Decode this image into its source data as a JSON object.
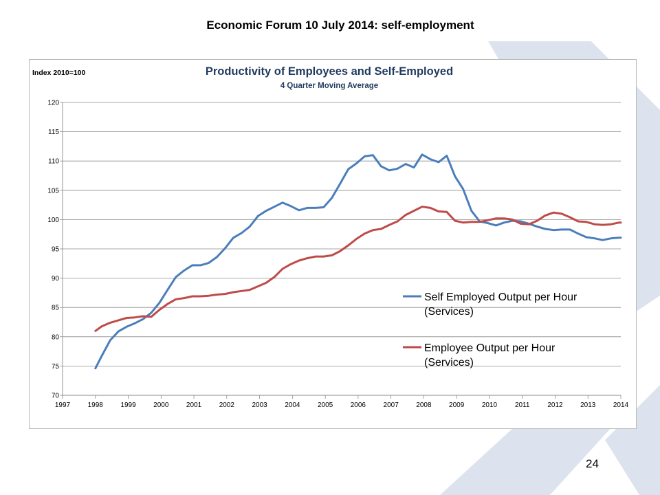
{
  "slide": {
    "title": "Economic Forum 10 July 2014: self-employment",
    "page_number": "24",
    "accent_color": "#dde3ee"
  },
  "chart_data": {
    "type": "line",
    "title": "Productivity of Employees and Self-Employed",
    "subtitle": "4 Quarter Moving Average",
    "ylabel": "Index 2010=100",
    "xlabel": "",
    "xlim": [
      1997,
      2014
    ],
    "ylim": [
      70,
      120
    ],
    "x_ticks": [
      "1997",
      "1998",
      "1999",
      "2000",
      "2001",
      "2002",
      "2003",
      "2004",
      "2005",
      "2006",
      "2007",
      "2008",
      "2009",
      "2010",
      "2011",
      "2012",
      "2013",
      "2014"
    ],
    "y_ticks": [
      "70",
      "75",
      "80",
      "85",
      "90",
      "95",
      "100",
      "105",
      "110",
      "115",
      "120"
    ],
    "grid": "horizontal",
    "legend_position": "right-center",
    "series": [
      {
        "name": "Self Employed Output per Hour (Services)",
        "color": "#4a7ebb",
        "points": [
          [
            1998.0,
            74.6
          ],
          [
            1998.2,
            76.8
          ],
          [
            1998.45,
            79.4
          ],
          [
            1998.7,
            80.9
          ],
          [
            1998.95,
            81.7
          ],
          [
            1999.2,
            82.3
          ],
          [
            1999.45,
            83.0
          ],
          [
            1999.7,
            84.1
          ],
          [
            1999.95,
            85.8
          ],
          [
            2000.2,
            88.0
          ],
          [
            2000.45,
            90.2
          ],
          [
            2000.7,
            91.3
          ],
          [
            2000.95,
            92.2
          ],
          [
            2001.2,
            92.2
          ],
          [
            2001.45,
            92.6
          ],
          [
            2001.7,
            93.6
          ],
          [
            2001.95,
            95.1
          ],
          [
            2002.2,
            96.9
          ],
          [
            2002.45,
            97.7
          ],
          [
            2002.7,
            98.8
          ],
          [
            2002.95,
            100.6
          ],
          [
            2003.2,
            101.5
          ],
          [
            2003.45,
            102.2
          ],
          [
            2003.7,
            102.9
          ],
          [
            2003.95,
            102.3
          ],
          [
            2004.2,
            101.6
          ],
          [
            2004.45,
            102.0
          ],
          [
            2004.7,
            102.0
          ],
          [
            2004.95,
            102.1
          ],
          [
            2005.2,
            103.7
          ],
          [
            2005.45,
            106.1
          ],
          [
            2005.7,
            108.6
          ],
          [
            2005.95,
            109.6
          ],
          [
            2006.2,
            110.8
          ],
          [
            2006.45,
            111.0
          ],
          [
            2006.7,
            109.1
          ],
          [
            2006.95,
            108.4
          ],
          [
            2007.2,
            108.7
          ],
          [
            2007.45,
            109.5
          ],
          [
            2007.7,
            108.9
          ],
          [
            2007.95,
            111.1
          ],
          [
            2008.2,
            110.3
          ],
          [
            2008.45,
            109.8
          ],
          [
            2008.7,
            110.9
          ],
          [
            2008.95,
            107.4
          ],
          [
            2009.2,
            105.2
          ],
          [
            2009.45,
            101.5
          ],
          [
            2009.7,
            99.7
          ],
          [
            2009.95,
            99.4
          ],
          [
            2010.2,
            99.0
          ],
          [
            2010.45,
            99.5
          ],
          [
            2010.7,
            99.8
          ],
          [
            2010.95,
            99.7
          ],
          [
            2011.2,
            99.3
          ],
          [
            2011.45,
            98.8
          ],
          [
            2011.7,
            98.4
          ],
          [
            2011.95,
            98.2
          ],
          [
            2012.2,
            98.3
          ],
          [
            2012.45,
            98.3
          ],
          [
            2012.7,
            97.6
          ],
          [
            2012.95,
            97.0
          ],
          [
            2013.2,
            96.8
          ],
          [
            2013.45,
            96.5
          ],
          [
            2013.7,
            96.8
          ],
          [
            2013.95,
            96.9
          ],
          [
            2014.0,
            96.9
          ]
        ]
      },
      {
        "name": "Employee Output per Hour (Services)",
        "color": "#be4b48",
        "points": [
          [
            1998.0,
            81.0
          ],
          [
            1998.2,
            81.8
          ],
          [
            1998.45,
            82.4
          ],
          [
            1998.7,
            82.8
          ],
          [
            1998.95,
            83.2
          ],
          [
            1999.2,
            83.3
          ],
          [
            1999.45,
            83.5
          ],
          [
            1999.7,
            83.4
          ],
          [
            1999.95,
            84.6
          ],
          [
            2000.2,
            85.6
          ],
          [
            2000.45,
            86.4
          ],
          [
            2000.7,
            86.6
          ],
          [
            2000.95,
            86.9
          ],
          [
            2001.2,
            86.9
          ],
          [
            2001.45,
            87.0
          ],
          [
            2001.7,
            87.2
          ],
          [
            2001.95,
            87.3
          ],
          [
            2002.2,
            87.6
          ],
          [
            2002.45,
            87.8
          ],
          [
            2002.7,
            88.0
          ],
          [
            2002.95,
            88.6
          ],
          [
            2003.2,
            89.2
          ],
          [
            2003.45,
            90.2
          ],
          [
            2003.7,
            91.6
          ],
          [
            2003.95,
            92.4
          ],
          [
            2004.2,
            93.0
          ],
          [
            2004.45,
            93.4
          ],
          [
            2004.7,
            93.7
          ],
          [
            2004.95,
            93.7
          ],
          [
            2005.2,
            93.9
          ],
          [
            2005.45,
            94.6
          ],
          [
            2005.7,
            95.6
          ],
          [
            2005.95,
            96.7
          ],
          [
            2006.2,
            97.6
          ],
          [
            2006.45,
            98.2
          ],
          [
            2006.7,
            98.4
          ],
          [
            2006.95,
            99.1
          ],
          [
            2007.2,
            99.7
          ],
          [
            2007.45,
            100.8
          ],
          [
            2007.7,
            101.5
          ],
          [
            2007.95,
            102.2
          ],
          [
            2008.2,
            102.0
          ],
          [
            2008.45,
            101.4
          ],
          [
            2008.7,
            101.3
          ],
          [
            2008.95,
            99.8
          ],
          [
            2009.2,
            99.5
          ],
          [
            2009.45,
            99.6
          ],
          [
            2009.7,
            99.6
          ],
          [
            2009.95,
            99.9
          ],
          [
            2010.2,
            100.2
          ],
          [
            2010.45,
            100.2
          ],
          [
            2010.7,
            100.0
          ],
          [
            2010.95,
            99.3
          ],
          [
            2011.2,
            99.2
          ],
          [
            2011.45,
            99.8
          ],
          [
            2011.7,
            100.7
          ],
          [
            2011.95,
            101.2
          ],
          [
            2012.2,
            101.0
          ],
          [
            2012.45,
            100.4
          ],
          [
            2012.7,
            99.7
          ],
          [
            2012.95,
            99.6
          ],
          [
            2013.2,
            99.2
          ],
          [
            2013.45,
            99.1
          ],
          [
            2013.7,
            99.2
          ],
          [
            2013.95,
            99.5
          ],
          [
            2014.0,
            99.5
          ]
        ]
      }
    ]
  }
}
